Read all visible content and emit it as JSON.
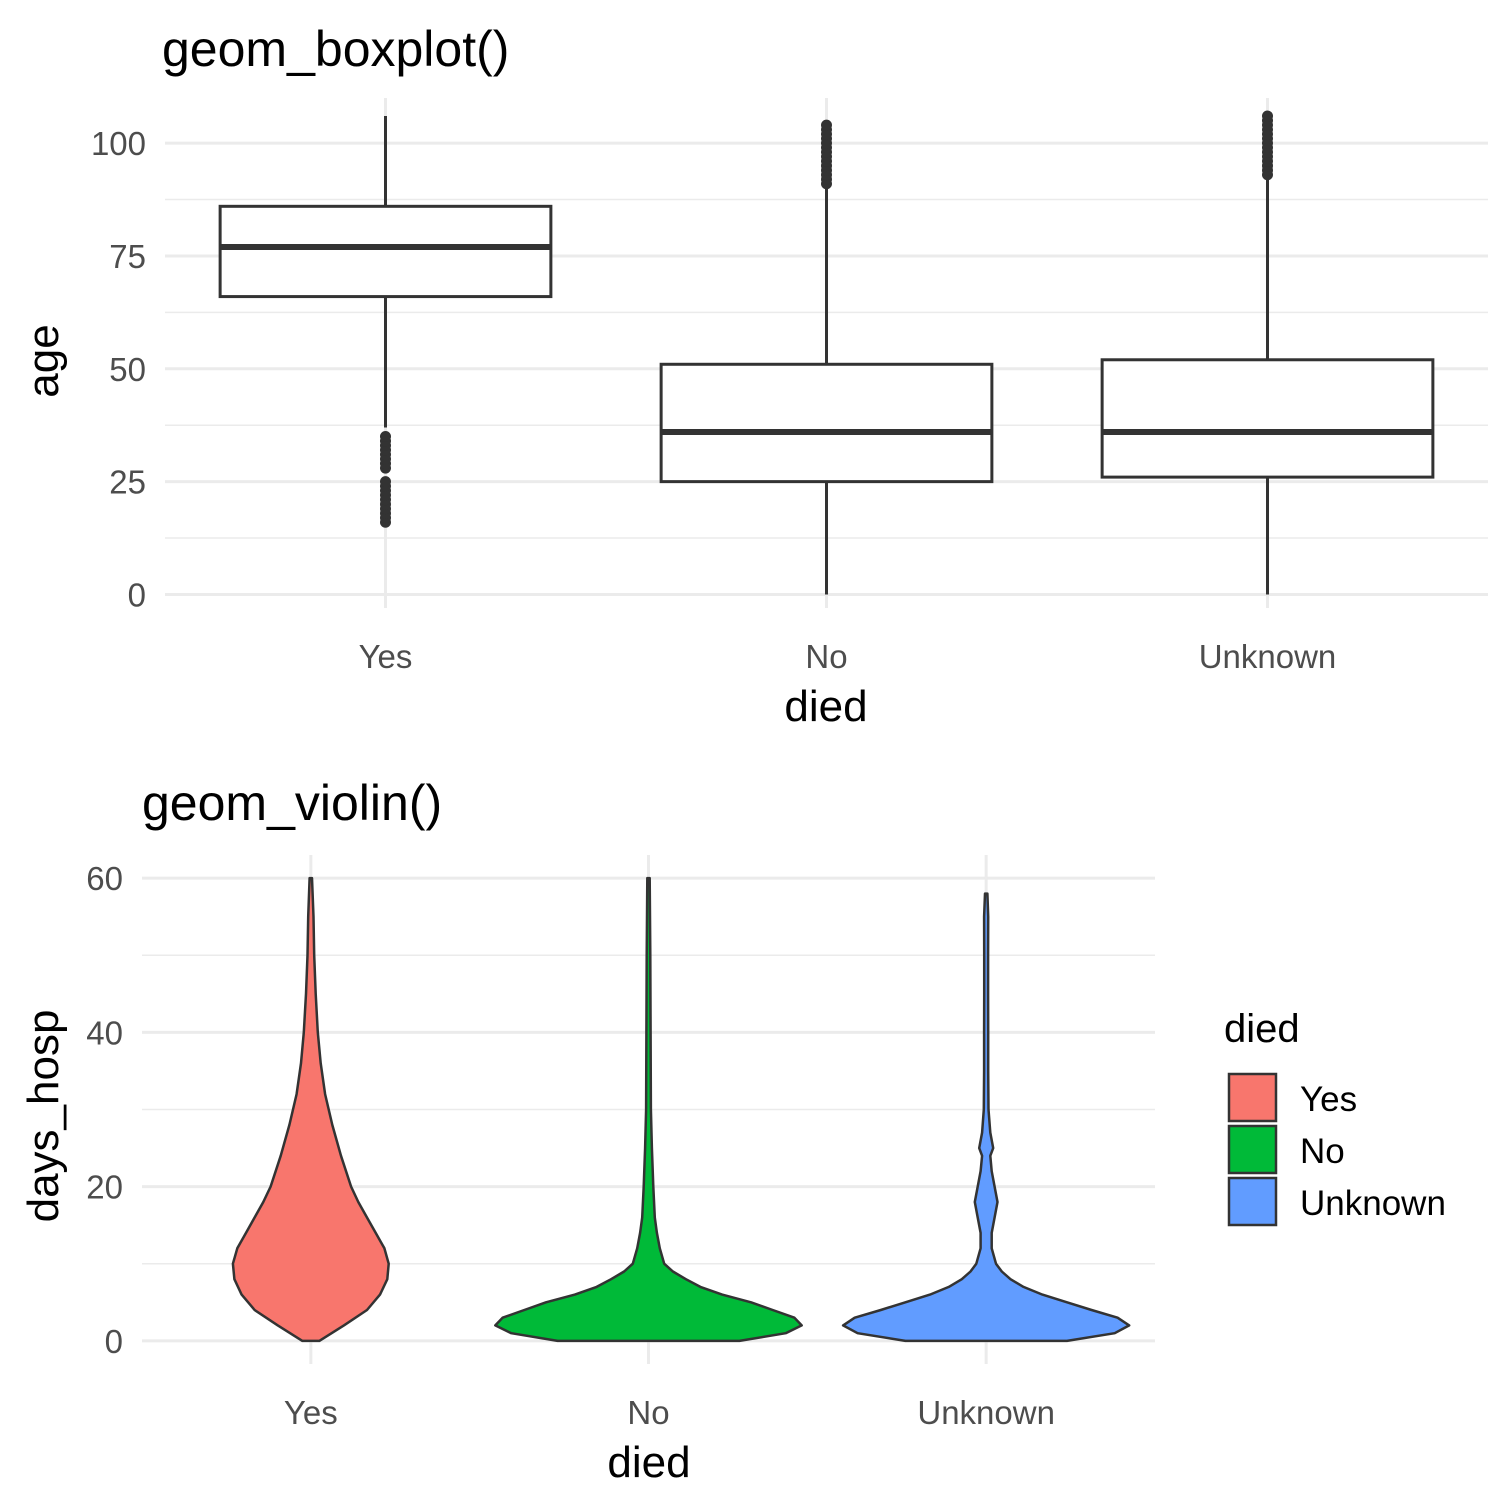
{
  "chart_data": [
    {
      "type": "boxplot",
      "title": "geom_boxplot()",
      "xlabel": "died",
      "ylabel": "age",
      "categories": [
        "Yes",
        "No",
        "Unknown"
      ],
      "y_ticks": [
        0,
        25,
        50,
        75,
        100
      ],
      "ylim": [
        -3,
        110
      ],
      "grid": true,
      "boxes": [
        {
          "category": "Yes",
          "lower_whisker": 37,
          "q1": 66,
          "median": 77,
          "q3": 86,
          "upper_whisker": 106,
          "outliers": [
            16,
            17,
            18,
            19,
            20,
            21,
            22,
            23,
            24,
            25,
            28,
            29,
            30,
            31,
            32,
            33,
            34,
            35
          ]
        },
        {
          "category": "No",
          "lower_whisker": 0,
          "q1": 25,
          "median": 36,
          "q3": 51,
          "upper_whisker": 90,
          "outliers": [
            91,
            92,
            93,
            94,
            95,
            96,
            97,
            98,
            99,
            100,
            101,
            102,
            103,
            104
          ]
        },
        {
          "category": "Unknown",
          "lower_whisker": 0,
          "q1": 26,
          "median": 36,
          "q3": 52,
          "upper_whisker": 92,
          "outliers": [
            93,
            94,
            95,
            96,
            97,
            98,
            99,
            100,
            101,
            102,
            103,
            104,
            105,
            106
          ]
        }
      ]
    },
    {
      "type": "violin",
      "title": "geom_violin()",
      "xlabel": "died",
      "ylabel": "days_hosp",
      "categories": [
        "Yes",
        "No",
        "Unknown"
      ],
      "y_ticks": [
        0,
        20,
        40,
        60
      ],
      "ylim": [
        -3,
        63
      ],
      "grid": true,
      "legend": {
        "title": "died",
        "position": "right",
        "items": [
          {
            "label": "Yes",
            "color": "#F8766D"
          },
          {
            "label": "No",
            "color": "#00BA38"
          },
          {
            "label": "Unknown",
            "color": "#619CFF"
          }
        ]
      },
      "series": [
        {
          "category": "Yes",
          "color": "#F8766D",
          "profile": [
            [
              0,
              0.05
            ],
            [
              2,
              0.22
            ],
            [
              4,
              0.38
            ],
            [
              6,
              0.47
            ],
            [
              8,
              0.52
            ],
            [
              10,
              0.53
            ],
            [
              12,
              0.5
            ],
            [
              14,
              0.44
            ],
            [
              16,
              0.38
            ],
            [
              18,
              0.32
            ],
            [
              20,
              0.27
            ],
            [
              24,
              0.2
            ],
            [
              28,
              0.14
            ],
            [
              32,
              0.09
            ],
            [
              36,
              0.06
            ],
            [
              40,
              0.04
            ],
            [
              45,
              0.025
            ],
            [
              50,
              0.015
            ],
            [
              55,
              0.01
            ],
            [
              60,
              0
            ]
          ]
        },
        {
          "category": "No",
          "color": "#00BA38",
          "profile": [
            [
              0,
              0.62
            ],
            [
              1,
              0.94
            ],
            [
              2,
              1.05
            ],
            [
              3,
              1.0
            ],
            [
              4,
              0.85
            ],
            [
              5,
              0.7
            ],
            [
              6,
              0.5
            ],
            [
              7,
              0.35
            ],
            [
              8,
              0.25
            ],
            [
              9,
              0.16
            ],
            [
              10,
              0.1
            ],
            [
              12,
              0.07
            ],
            [
              14,
              0.05
            ],
            [
              16,
              0.035
            ],
            [
              20,
              0.025
            ],
            [
              25,
              0.015
            ],
            [
              30,
              0.008
            ],
            [
              40,
              0.006
            ],
            [
              50,
              0.004
            ],
            [
              60,
              0
            ]
          ]
        },
        {
          "category": "Unknown",
          "color": "#619CFF",
          "profile": [
            [
              0,
              0.55
            ],
            [
              1,
              0.88
            ],
            [
              2,
              0.98
            ],
            [
              3,
              0.9
            ],
            [
              4,
              0.72
            ],
            [
              5,
              0.55
            ],
            [
              6,
              0.38
            ],
            [
              7,
              0.25
            ],
            [
              8,
              0.16
            ],
            [
              9,
              0.1
            ],
            [
              10,
              0.06
            ],
            [
              12,
              0.03
            ],
            [
              14,
              0.03
            ],
            [
              16,
              0.05
            ],
            [
              18,
              0.07
            ],
            [
              20,
              0.05
            ],
            [
              22,
              0.03
            ],
            [
              24,
              0.02
            ],
            [
              25,
              0.04
            ],
            [
              27,
              0.02
            ],
            [
              30,
              0.008
            ],
            [
              35,
              0.006
            ],
            [
              40,
              0.006
            ],
            [
              45,
              0.005
            ],
            [
              50,
              0.005
            ],
            [
              55,
              0.006
            ],
            [
              58,
              0
            ]
          ]
        }
      ]
    }
  ]
}
